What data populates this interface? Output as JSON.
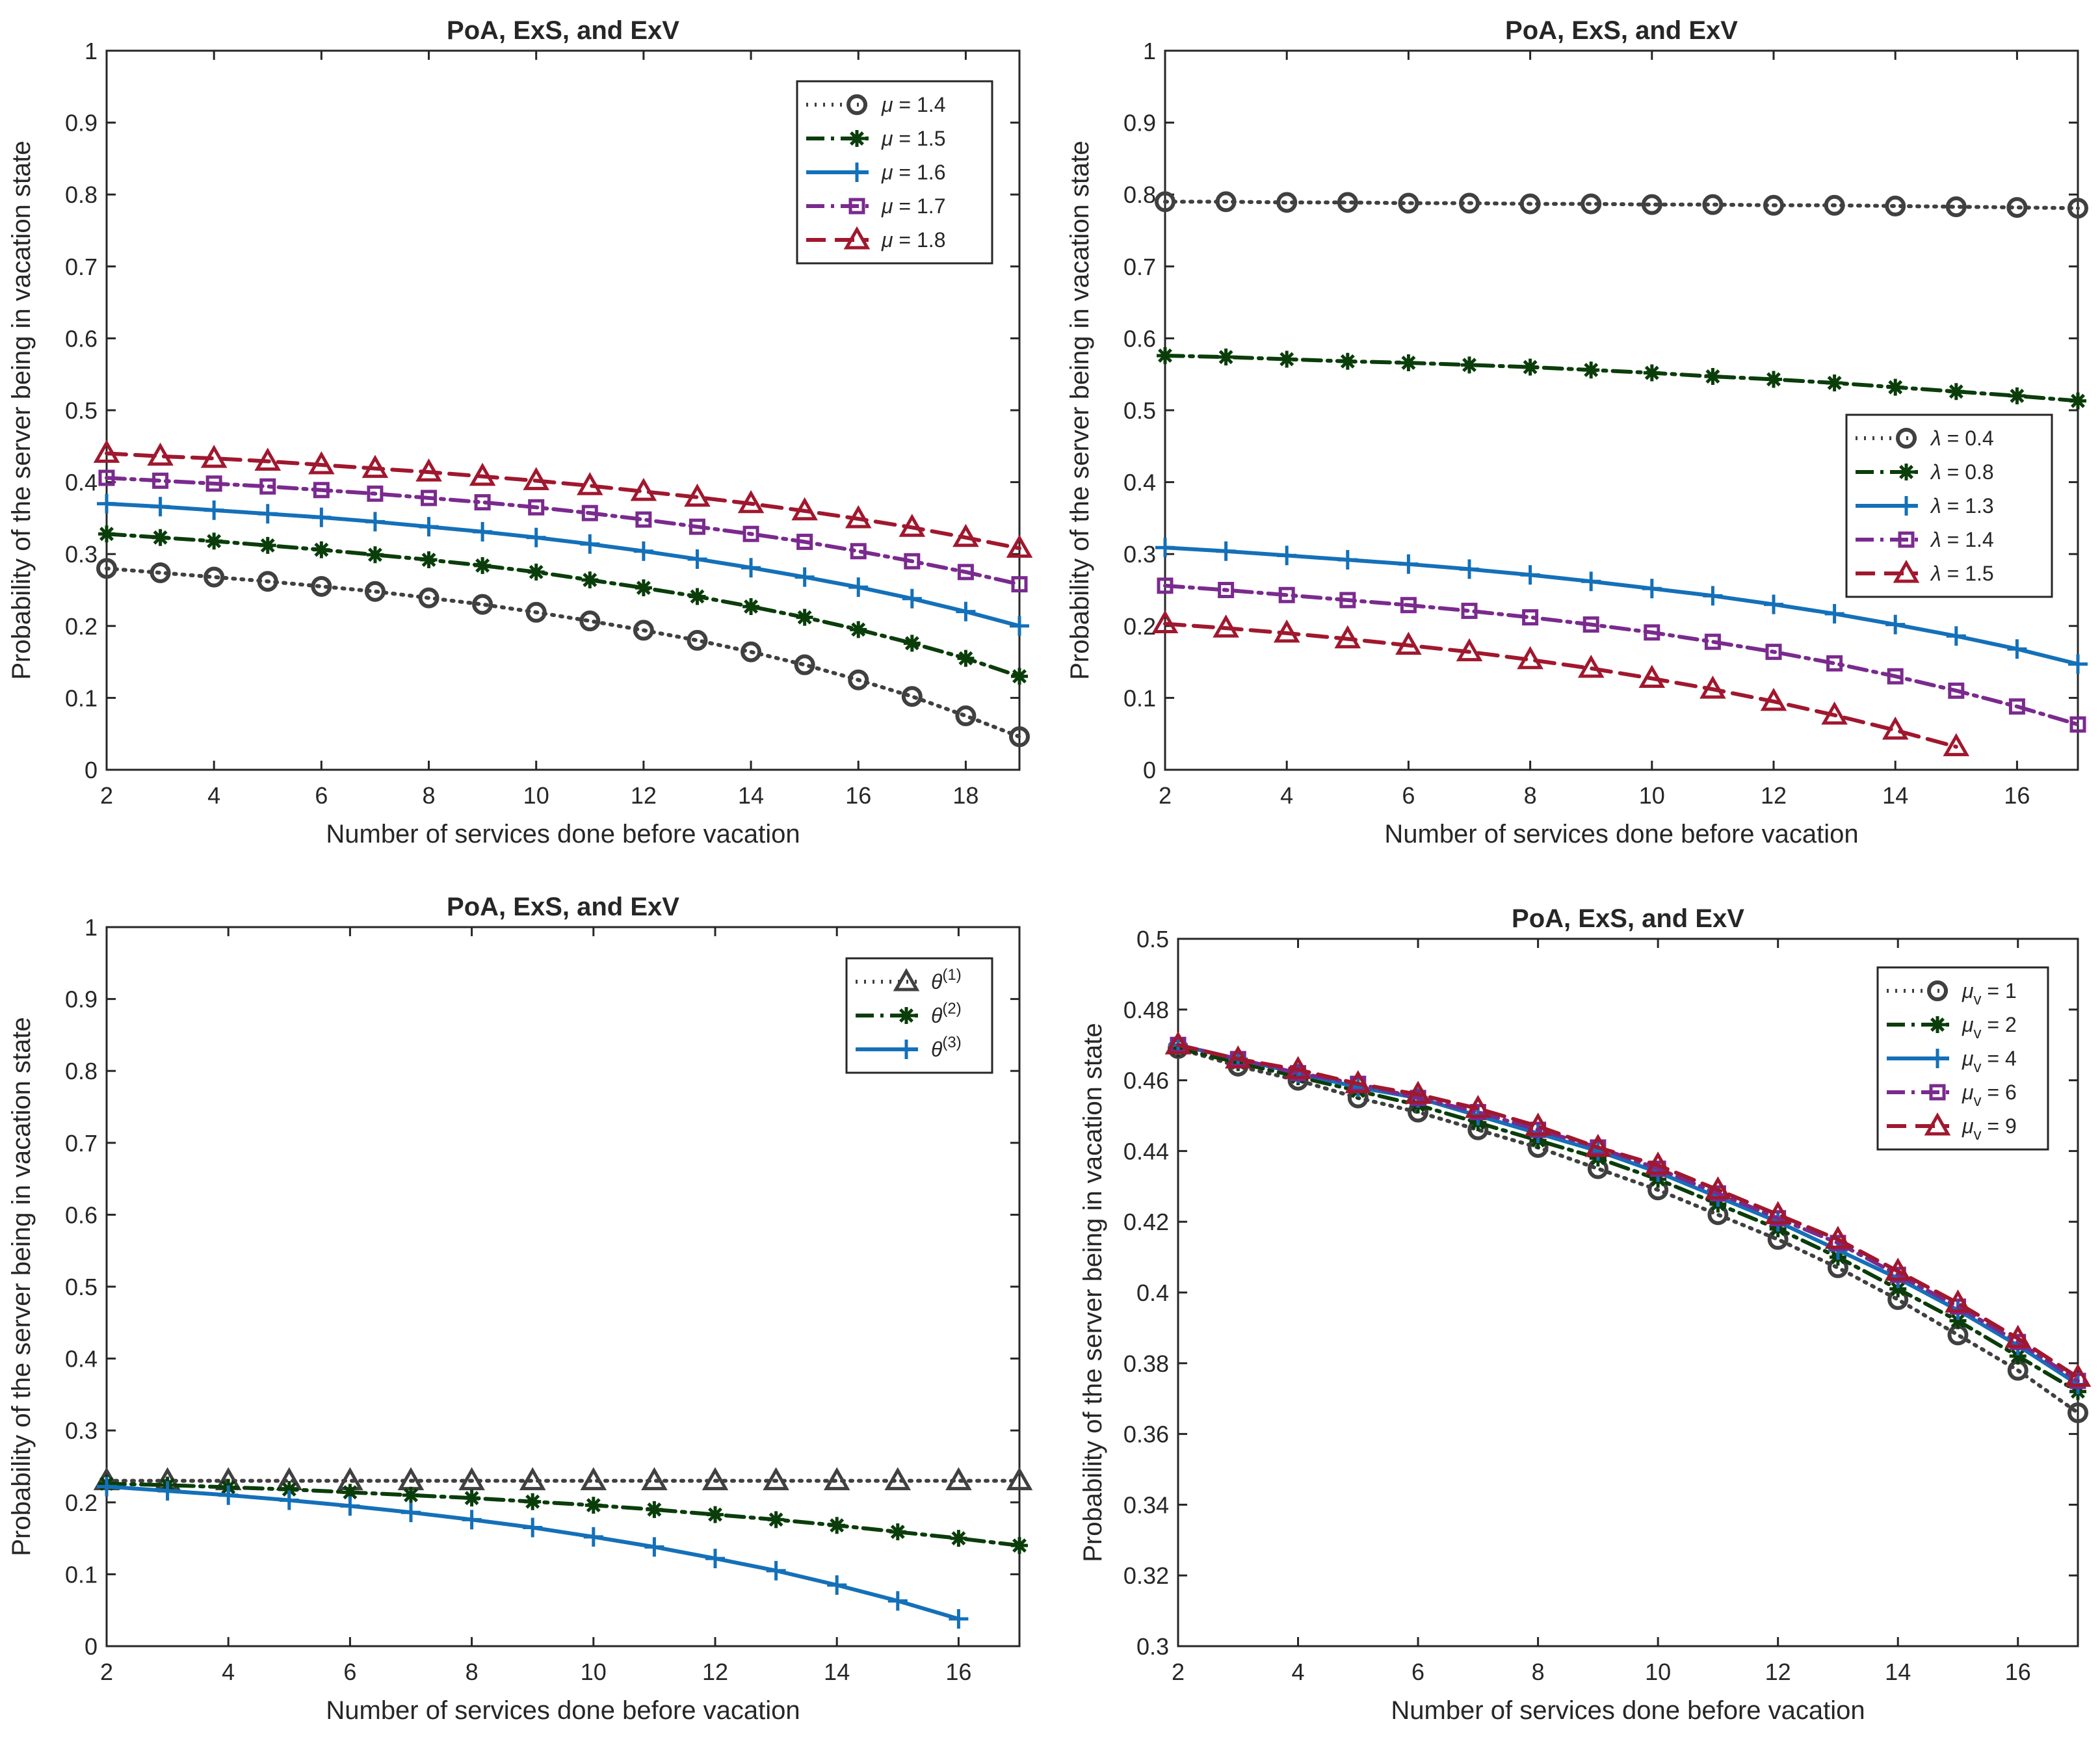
{
  "chart_data": [
    {
      "type": "line",
      "title": "PoA, ExS, and ExV",
      "xlabel": "Number of services done before vacation",
      "ylabel": "Probability of the server being in vacation state",
      "xlim": [
        2,
        19
      ],
      "ylim": [
        0,
        1
      ],
      "xticks": [
        2,
        4,
        6,
        8,
        10,
        12,
        14,
        16,
        18
      ],
      "yticks": [
        0,
        0.1,
        0.2,
        0.3,
        0.4,
        0.5,
        0.6,
        0.7,
        0.8,
        0.9,
        1
      ],
      "legend": "top-right",
      "x": [
        2,
        3,
        4,
        5,
        6,
        7,
        8,
        9,
        10,
        11,
        12,
        13,
        14,
        15,
        16,
        17,
        18,
        19
      ],
      "series": [
        {
          "name": "μ = 1.4",
          "sym": "μ",
          "val": "= 1.4",
          "style": "dotted",
          "marker": "circle",
          "color": "#404040",
          "values": [
            0.28,
            0.274,
            0.268,
            0.262,
            0.255,
            0.248,
            0.239,
            0.23,
            0.219,
            0.207,
            0.194,
            0.18,
            0.164,
            0.146,
            0.125,
            0.102,
            0.075,
            0.046
          ]
        },
        {
          "name": "μ = 1.5",
          "sym": "μ",
          "val": "= 1.5",
          "style": "dashdot",
          "marker": "star",
          "color": "#0a3d0a",
          "values": [
            0.328,
            0.323,
            0.318,
            0.312,
            0.306,
            0.299,
            0.292,
            0.284,
            0.275,
            0.264,
            0.253,
            0.241,
            0.227,
            0.212,
            0.195,
            0.176,
            0.155,
            0.13
          ]
        },
        {
          "name": "μ = 1.6",
          "sym": "μ",
          "val": "= 1.6",
          "style": "solid",
          "marker": "plus",
          "color": "#1470b8",
          "values": [
            0.37,
            0.366,
            0.361,
            0.356,
            0.351,
            0.345,
            0.338,
            0.331,
            0.323,
            0.314,
            0.304,
            0.293,
            0.281,
            0.268,
            0.254,
            0.238,
            0.22,
            0.2
          ]
        },
        {
          "name": "μ = 1.7",
          "sym": "μ",
          "val": "= 1.7",
          "style": "dashdot",
          "marker": "square",
          "color": "#7a2a8e",
          "values": [
            0.406,
            0.402,
            0.398,
            0.394,
            0.389,
            0.384,
            0.378,
            0.372,
            0.365,
            0.357,
            0.348,
            0.338,
            0.328,
            0.317,
            0.304,
            0.29,
            0.275,
            0.258
          ]
        },
        {
          "name": "μ = 1.8",
          "sym": "μ",
          "val": "= 1.8",
          "style": "dashed",
          "marker": "triangle",
          "color": "#a0182e",
          "values": [
            0.44,
            0.436,
            0.433,
            0.429,
            0.424,
            0.419,
            0.414,
            0.408,
            0.402,
            0.395,
            0.387,
            0.379,
            0.37,
            0.36,
            0.349,
            0.337,
            0.323,
            0.308
          ]
        }
      ]
    },
    {
      "type": "line",
      "title": "PoA, ExS, and ExV",
      "xlabel": "Number of services done before vacation",
      "ylabel": "Probability of the server being in vacation state",
      "xlim": [
        2,
        17
      ],
      "ylim": [
        0,
        1
      ],
      "xticks": [
        2,
        4,
        6,
        8,
        10,
        12,
        14,
        16
      ],
      "yticks": [
        0,
        0.1,
        0.2,
        0.3,
        0.4,
        0.5,
        0.6,
        0.7,
        0.8,
        0.9,
        1
      ],
      "legend": "right",
      "x": [
        2,
        3,
        4,
        5,
        6,
        7,
        8,
        9,
        10,
        11,
        12,
        13,
        14,
        15,
        16,
        17
      ],
      "series": [
        {
          "name": "λ = 0.4",
          "sym": "λ",
          "val": "= 0.4",
          "style": "dotted",
          "marker": "circle",
          "color": "#404040",
          "values": [
            0.79,
            0.79,
            0.789,
            0.789,
            0.788,
            0.788,
            0.787,
            0.787,
            0.786,
            0.786,
            0.785,
            0.785,
            0.784,
            0.783,
            0.782,
            0.781
          ]
        },
        {
          "name": "λ = 0.8",
          "sym": "λ",
          "val": "= 0.8",
          "style": "dashdot",
          "marker": "star",
          "color": "#0a3d0a",
          "values": [
            0.576,
            0.574,
            0.571,
            0.568,
            0.566,
            0.563,
            0.56,
            0.556,
            0.552,
            0.547,
            0.543,
            0.538,
            0.532,
            0.526,
            0.52,
            0.513
          ]
        },
        {
          "name": "λ = 1.3",
          "sym": "λ",
          "val": "= 1.3",
          "style": "solid",
          "marker": "plus",
          "color": "#1470b8",
          "values": [
            0.309,
            0.304,
            0.298,
            0.292,
            0.286,
            0.279,
            0.271,
            0.262,
            0.252,
            0.242,
            0.23,
            0.217,
            0.202,
            0.186,
            0.168,
            0.147
          ]
        },
        {
          "name": "λ = 1.4",
          "sym": "λ",
          "val": "= 1.4",
          "style": "dashdot",
          "marker": "square",
          "color": "#7a2a8e",
          "values": [
            0.256,
            0.25,
            0.243,
            0.236,
            0.229,
            0.221,
            0.212,
            0.202,
            0.191,
            0.178,
            0.164,
            0.148,
            0.13,
            0.11,
            0.088,
            0.063
          ]
        },
        {
          "name": "λ = 1.5",
          "sym": "λ",
          "val": "= 1.5",
          "style": "dashed",
          "marker": "triangle",
          "color": "#a0182e",
          "values": [
            0.203,
            0.197,
            0.19,
            0.182,
            0.173,
            0.164,
            0.153,
            0.141,
            0.127,
            0.112,
            0.095,
            0.076,
            0.055,
            0.032,
            null,
            null
          ]
        }
      ]
    },
    {
      "type": "line",
      "title": "PoA, ExS, and ExV",
      "xlabel": "Number of services done before vacation",
      "ylabel": "Probability of the server being in vacation state",
      "xlim": [
        2,
        17
      ],
      "ylim": [
        0,
        1
      ],
      "xticks": [
        2,
        4,
        6,
        8,
        10,
        12,
        14,
        16
      ],
      "yticks": [
        0,
        0.1,
        0.2,
        0.3,
        0.4,
        0.5,
        0.6,
        0.7,
        0.8,
        0.9,
        1
      ],
      "legend": "top-right",
      "x": [
        2,
        3,
        4,
        5,
        6,
        7,
        8,
        9,
        10,
        11,
        12,
        13,
        14,
        15,
        16,
        17
      ],
      "series": [
        {
          "name": "θ(1)",
          "sym": "θ",
          "sup": "(1)",
          "val": "",
          "style": "dotted",
          "marker": "triangle",
          "color": "#404040",
          "values": [
            0.23,
            0.23,
            0.23,
            0.23,
            0.23,
            0.23,
            0.23,
            0.23,
            0.23,
            0.23,
            0.23,
            0.23,
            0.23,
            0.23,
            0.23,
            0.23
          ]
        },
        {
          "name": "θ(2)",
          "sym": "θ",
          "sup": "(2)",
          "val": "",
          "style": "dashdot",
          "marker": "star",
          "color": "#0a3d0a",
          "values": [
            0.226,
            0.224,
            0.221,
            0.218,
            0.214,
            0.21,
            0.206,
            0.201,
            0.196,
            0.19,
            0.183,
            0.176,
            0.168,
            0.159,
            0.15,
            0.14
          ]
        },
        {
          "name": "θ(3)",
          "sym": "θ",
          "sup": "(3)",
          "val": "",
          "style": "solid",
          "marker": "plus",
          "color": "#1470b8",
          "values": [
            0.222,
            0.216,
            0.21,
            0.203,
            0.195,
            0.186,
            0.176,
            0.165,
            0.152,
            0.138,
            0.122,
            0.105,
            0.085,
            0.063,
            0.038,
            null
          ]
        }
      ]
    },
    {
      "type": "line",
      "title": "PoA, ExS, and ExV",
      "xlabel": "Number of services done before vacation",
      "ylabel": "Probability of the server being in vacation state",
      "xlim": [
        2,
        17
      ],
      "ylim": [
        0.3,
        0.5
      ],
      "xticks": [
        2,
        4,
        6,
        8,
        10,
        12,
        14,
        16
      ],
      "yticks": [
        0.3,
        0.32,
        0.34,
        0.36,
        0.38,
        0.4,
        0.42,
        0.44,
        0.46,
        0.48,
        0.5
      ],
      "legend": "top-right",
      "x": [
        2,
        3,
        4,
        5,
        6,
        7,
        8,
        9,
        10,
        11,
        12,
        13,
        14,
        15,
        16,
        17
      ],
      "series": [
        {
          "name": "μv = 1",
          "sym": "μ",
          "sub": "v",
          "val": "= 1",
          "style": "dotted",
          "marker": "circle",
          "color": "#404040",
          "values": [
            0.469,
            0.464,
            0.46,
            0.455,
            0.451,
            0.446,
            0.441,
            0.435,
            0.429,
            0.422,
            0.415,
            0.407,
            0.398,
            0.388,
            0.378,
            0.366
          ]
        },
        {
          "name": "μv = 2",
          "sym": "μ",
          "sub": "v",
          "val": "= 2",
          "style": "dashdot",
          "marker": "star",
          "color": "#0a3d0a",
          "values": [
            0.469,
            0.465,
            0.461,
            0.457,
            0.453,
            0.448,
            0.443,
            0.438,
            0.432,
            0.425,
            0.418,
            0.41,
            0.401,
            0.392,
            0.382,
            0.372
          ]
        },
        {
          "name": "μv = 4",
          "sym": "μ",
          "sub": "v",
          "val": "= 4",
          "style": "solid",
          "marker": "plus",
          "color": "#1470b8",
          "values": [
            0.47,
            0.466,
            0.462,
            0.458,
            0.455,
            0.45,
            0.445,
            0.44,
            0.434,
            0.427,
            0.42,
            0.412,
            0.404,
            0.395,
            0.385,
            0.374
          ]
        },
        {
          "name": "μv = 6",
          "sym": "μ",
          "sub": "v",
          "val": "= 6",
          "style": "dashdot",
          "marker": "square",
          "color": "#7a2a8e",
          "values": [
            0.47,
            0.466,
            0.462,
            0.459,
            0.455,
            0.451,
            0.446,
            0.441,
            0.435,
            0.428,
            0.421,
            0.414,
            0.405,
            0.396,
            0.386,
            0.375
          ]
        },
        {
          "name": "μv = 9",
          "sym": "μ",
          "sub": "v",
          "val": "= 9",
          "style": "dashed",
          "marker": "triangle",
          "color": "#a0182e",
          "values": [
            0.47,
            0.466,
            0.463,
            0.459,
            0.456,
            0.452,
            0.447,
            0.441,
            0.436,
            0.429,
            0.422,
            0.415,
            0.406,
            0.397,
            0.387,
            0.376
          ]
        }
      ]
    }
  ]
}
